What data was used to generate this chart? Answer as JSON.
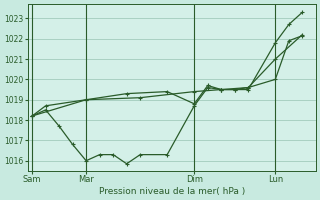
{
  "background_color": "#c8eae0",
  "plot_bg_color": "#d4f0e8",
  "grid_color": "#99c4b4",
  "line_color": "#2a5c2a",
  "xlabel": "Pression niveau de la mer( hPa )",
  "ylim": [
    1015.5,
    1023.7
  ],
  "yticks": [
    1016,
    1017,
    1018,
    1019,
    1020,
    1021,
    1022,
    1023
  ],
  "xtick_labels": [
    "Sam",
    "Mar",
    "Dim",
    "Lun"
  ],
  "xtick_positions": [
    0,
    24,
    72,
    108
  ],
  "xlim": [
    -2,
    126
  ],
  "vline_positions": [
    0,
    24,
    72,
    108
  ],
  "series1_x": [
    0,
    6,
    12,
    18,
    24,
    30,
    36,
    42,
    48,
    60,
    72,
    78,
    84,
    90,
    96,
    108,
    114,
    120
  ],
  "series1_y": [
    1018.2,
    1018.5,
    1017.7,
    1016.8,
    1016.0,
    1016.3,
    1016.3,
    1015.85,
    1016.3,
    1016.3,
    1018.7,
    1019.6,
    1019.5,
    1019.5,
    1019.6,
    1020.0,
    1021.9,
    1022.15
  ],
  "series2_x": [
    0,
    6,
    24,
    42,
    60,
    72,
    78,
    84,
    90,
    96,
    108,
    114,
    120
  ],
  "series2_y": [
    1018.2,
    1018.7,
    1019.0,
    1019.3,
    1019.4,
    1018.8,
    1019.7,
    1019.5,
    1019.5,
    1019.5,
    1021.8,
    1022.7,
    1023.3
  ],
  "series3_x": [
    0,
    24,
    48,
    72,
    84,
    96,
    108,
    120
  ],
  "series3_y": [
    1018.2,
    1019.0,
    1019.1,
    1019.4,
    1019.5,
    1019.6,
    1021.0,
    1022.2
  ]
}
